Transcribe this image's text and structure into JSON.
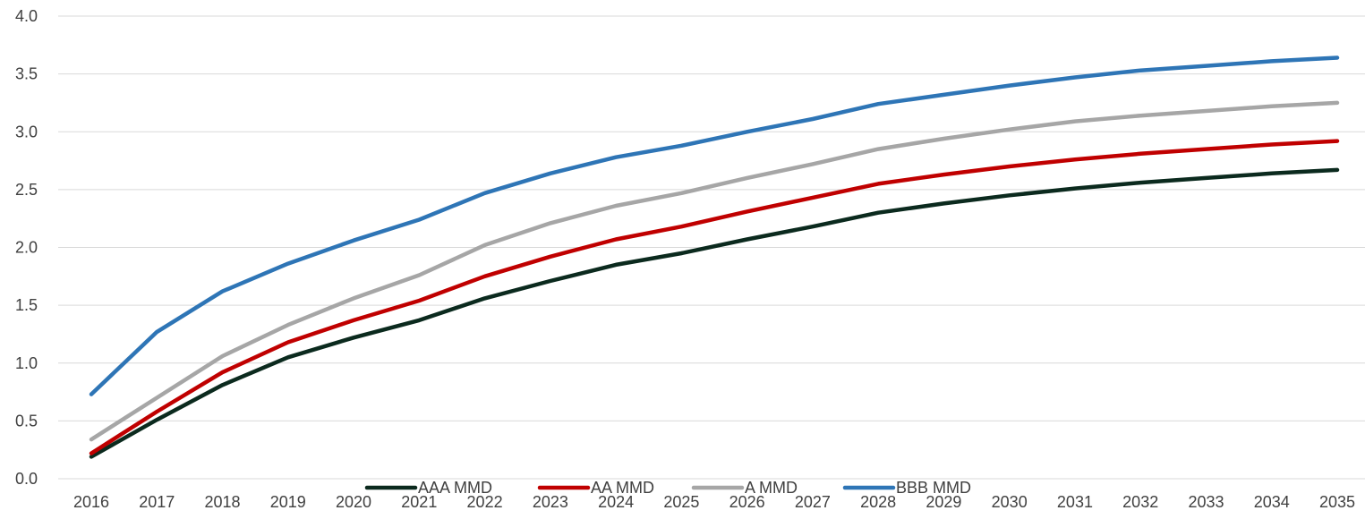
{
  "chart_data": {
    "type": "line",
    "title": "",
    "xlabel": "",
    "ylabel": "",
    "ylim": [
      0,
      4
    ],
    "y_ticks": [
      "0.0",
      "0.5",
      "1.0",
      "1.5",
      "2.0",
      "2.5",
      "3.0",
      "3.5",
      "4.0"
    ],
    "grid": true,
    "legend_position": "bottom",
    "categories": [
      "2016",
      "2017",
      "2018",
      "2019",
      "2020",
      "2021",
      "2022",
      "2023",
      "2024",
      "2025",
      "2026",
      "2027",
      "2028",
      "2029",
      "2030",
      "2031",
      "2032",
      "2033",
      "2034",
      "2035"
    ],
    "series": [
      {
        "name": "AAA MMD",
        "color": "#0b2a1e",
        "values": [
          0.19,
          0.51,
          0.81,
          1.05,
          1.22,
          1.37,
          1.56,
          1.71,
          1.85,
          1.95,
          2.07,
          2.18,
          2.3,
          2.38,
          2.45,
          2.51,
          2.56,
          2.6,
          2.64,
          2.67
        ]
      },
      {
        "name": "AA MMD",
        "color": "#c00000",
        "values": [
          0.22,
          0.58,
          0.92,
          1.18,
          1.37,
          1.54,
          1.75,
          1.92,
          2.07,
          2.18,
          2.31,
          2.43,
          2.55,
          2.63,
          2.7,
          2.76,
          2.81,
          2.85,
          2.89,
          2.92
        ]
      },
      {
        "name": "A MMD",
        "color": "#a6a6a6",
        "values": [
          0.34,
          0.7,
          1.06,
          1.33,
          1.56,
          1.76,
          2.02,
          2.21,
          2.36,
          2.47,
          2.6,
          2.72,
          2.85,
          2.94,
          3.02,
          3.09,
          3.14,
          3.18,
          3.22,
          3.25
        ]
      },
      {
        "name": "BBB MMD",
        "color": "#2e75b6",
        "values": [
          0.73,
          1.27,
          1.62,
          1.86,
          2.06,
          2.24,
          2.47,
          2.64,
          2.78,
          2.88,
          3.0,
          3.11,
          3.24,
          3.32,
          3.4,
          3.47,
          3.53,
          3.57,
          3.61,
          3.64
        ]
      }
    ]
  }
}
